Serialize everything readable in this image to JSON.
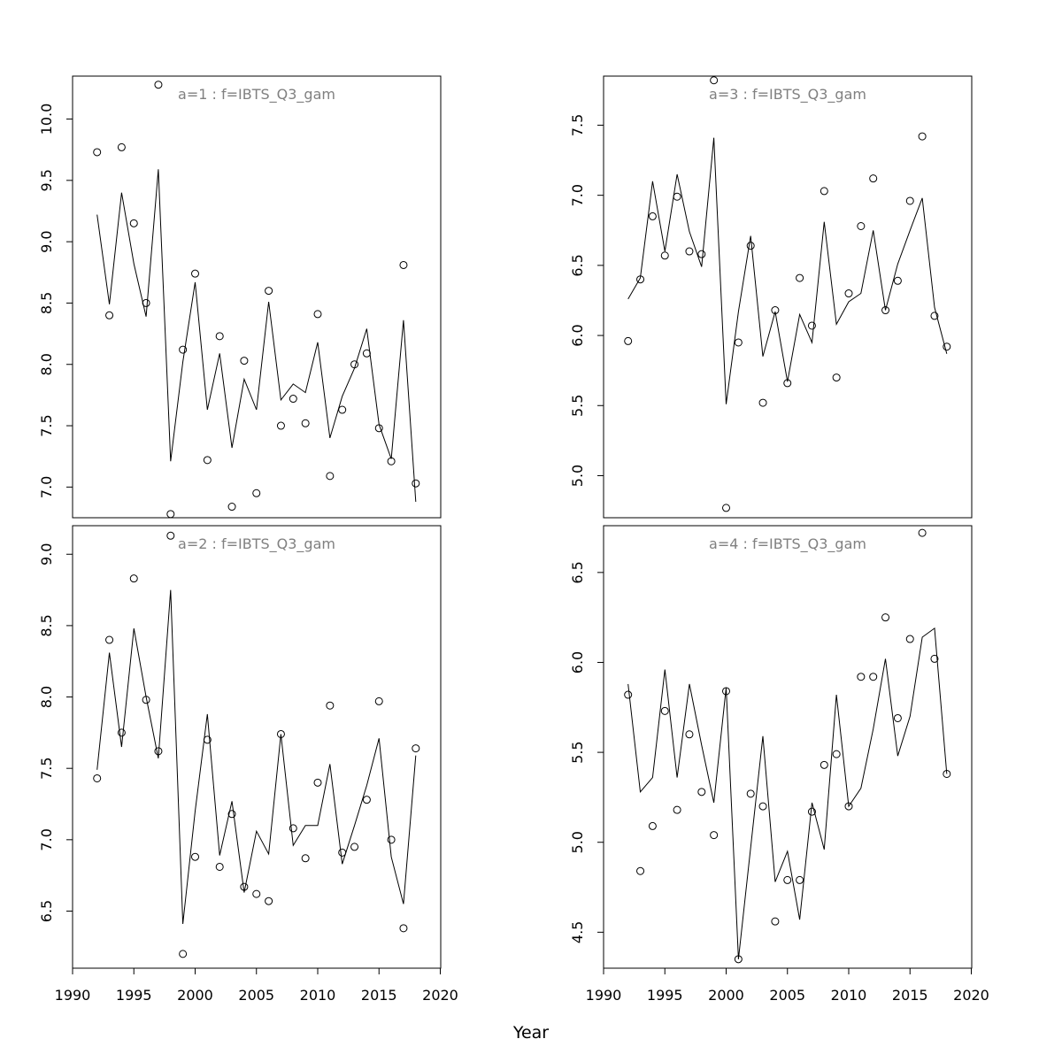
{
  "chart_data": {
    "type": "scatter",
    "xlabel": "Year",
    "xlim": [
      1990,
      2020
    ],
    "xticks": [
      1990,
      1995,
      2000,
      2005,
      2010,
      2015,
      2020
    ],
    "years": [
      1992,
      1993,
      1994,
      1995,
      1996,
      1997,
      1998,
      1999,
      2000,
      2001,
      2002,
      2003,
      2004,
      2005,
      2006,
      2007,
      2008,
      2009,
      2010,
      2011,
      2012,
      2013,
      2014,
      2015,
      2016,
      2017,
      2018
    ],
    "panels": [
      {
        "title": "a=1  :  f=IBTS_Q3_gam",
        "ylim": [
          6.75,
          10.35
        ],
        "yticks": [
          7.0,
          7.5,
          8.0,
          8.5,
          9.0,
          9.5,
          10.0
        ],
        "observed": [
          9.73,
          8.4,
          9.77,
          9.15,
          8.5,
          10.28,
          6.78,
          8.12,
          8.74,
          7.22,
          8.23,
          6.84,
          8.03,
          6.95,
          8.6,
          7.5,
          7.72,
          7.52,
          8.41,
          7.09,
          7.63,
          8.0,
          8.09,
          7.48,
          7.21,
          8.81,
          7.03
        ],
        "fitted": [
          9.22,
          8.49,
          9.4,
          8.82,
          8.39,
          9.59,
          7.21,
          8.02,
          8.67,
          7.63,
          8.09,
          7.32,
          7.88,
          7.63,
          8.51,
          7.71,
          7.84,
          7.77,
          8.18,
          7.4,
          7.74,
          7.97,
          8.29,
          7.51,
          7.23,
          8.36,
          6.88
        ]
      },
      {
        "title": "a=2  :  f=IBTS_Q3_gam",
        "ylim": [
          6.1,
          9.2
        ],
        "yticks": [
          6.5,
          7.0,
          7.5,
          8.0,
          8.5,
          9.0
        ],
        "observed": [
          7.43,
          8.4,
          7.75,
          8.83,
          7.98,
          7.62,
          9.13,
          6.2,
          6.88,
          7.7,
          6.81,
          7.18,
          6.67,
          6.62,
          6.57,
          7.74,
          7.08,
          6.87,
          7.4,
          7.94,
          6.91,
          6.95,
          7.28,
          7.97,
          7.0,
          6.38,
          7.64
        ],
        "fitted": [
          7.49,
          8.31,
          7.65,
          8.48,
          8.0,
          7.57,
          8.75,
          6.41,
          7.2,
          7.88,
          6.89,
          7.27,
          6.63,
          7.06,
          6.9,
          7.74,
          6.96,
          7.1,
          7.1,
          7.53,
          6.83,
          7.1,
          7.38,
          7.71,
          6.88,
          6.55,
          7.59
        ]
      },
      {
        "title": "a=3  :  f=IBTS_Q3_gam",
        "ylim": [
          4.7,
          7.85
        ],
        "yticks": [
          5.0,
          5.5,
          6.0,
          6.5,
          7.0,
          7.5
        ],
        "observed": [
          5.96,
          6.4,
          6.85,
          6.57,
          6.99,
          6.6,
          6.58,
          7.82,
          4.77,
          5.95,
          6.64,
          5.52,
          6.18,
          5.66,
          6.41,
          6.07,
          7.03,
          5.7,
          6.3,
          6.78,
          7.12,
          6.18,
          6.39,
          6.96,
          7.42,
          6.14,
          5.92
        ],
        "fitted": [
          6.26,
          6.41,
          7.1,
          6.6,
          7.15,
          6.74,
          6.49,
          7.41,
          5.51,
          6.17,
          6.71,
          5.85,
          6.17,
          5.67,
          6.15,
          5.95,
          6.81,
          6.08,
          6.24,
          6.3,
          6.75,
          6.18,
          6.51,
          6.75,
          6.98,
          6.2,
          5.87
        ]
      },
      {
        "title": "a=4  :  f=IBTS_Q3_gam",
        "ylim": [
          4.3,
          6.76
        ],
        "yticks": [
          4.5,
          5.0,
          5.5,
          6.0,
          6.5
        ],
        "observed": [
          5.82,
          4.84,
          5.09,
          5.73,
          5.18,
          5.6,
          5.28,
          5.04,
          5.84,
          4.35,
          5.27,
          5.2,
          4.56,
          4.79,
          4.79,
          5.17,
          5.43,
          5.49,
          5.2,
          5.92,
          5.92,
          6.25,
          5.69,
          6.13,
          6.72,
          6.02,
          5.38
        ],
        "fitted": [
          5.88,
          5.28,
          5.36,
          5.96,
          5.36,
          5.88,
          5.54,
          5.22,
          5.86,
          4.35,
          4.97,
          5.59,
          4.78,
          4.95,
          4.57,
          5.22,
          4.96,
          5.82,
          5.2,
          5.3,
          5.63,
          6.02,
          5.48,
          5.7,
          6.14,
          6.19,
          5.38
        ]
      }
    ]
  }
}
